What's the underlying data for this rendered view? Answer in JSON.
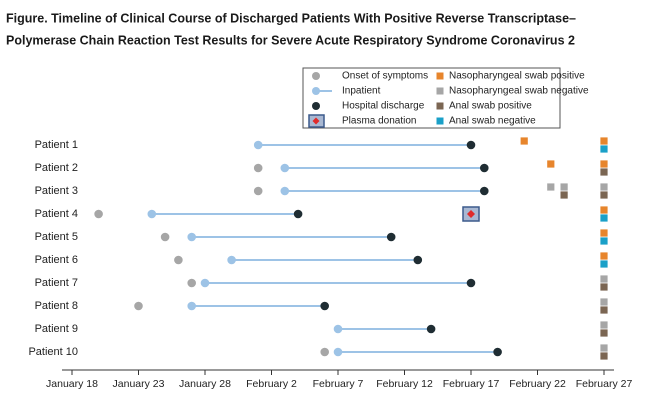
{
  "chart_data": {
    "type": "timeline",
    "title": [
      "Figure.  Timeline of Clinical Course of Discharged Patients With Positive Reverse Transcriptase–",
      "Polymerase Chain Reaction Test Results for Severe Acute Respiratory Syndrome Coronavirus 2"
    ],
    "categories": [
      "Patient 1",
      "Patient 2",
      "Patient 3",
      "Patient 4",
      "Patient 5",
      "Patient 6",
      "Patient 7",
      "Patient 8",
      "Patient 9",
      "Patient 10"
    ],
    "xlim": [
      18,
      58
    ],
    "xticks": [
      {
        "value": 18,
        "label": "January 18"
      },
      {
        "value": 23,
        "label": "January 23"
      },
      {
        "value": 28,
        "label": "January 28"
      },
      {
        "value": 33,
        "label": "February 2"
      },
      {
        "value": 38,
        "label": "February 7"
      },
      {
        "value": 43,
        "label": "February 12"
      },
      {
        "value": 48,
        "label": "February 17"
      },
      {
        "value": 53,
        "label": "February 22"
      },
      {
        "value": 58,
        "label": "February 27"
      }
    ],
    "series": [
      {
        "name": "Onset of symptoms",
        "color": "#a6a6a6",
        "values": [
          null,
          32,
          32,
          20,
          25,
          26,
          27,
          23,
          null,
          37
        ]
      },
      {
        "name": "Inpatient",
        "color": "#9dc3e6",
        "values": [
          32,
          34,
          34,
          24,
          27,
          30,
          28,
          27,
          38,
          38
        ]
      },
      {
        "name": "Hospital discharge",
        "color": "#1f2d33",
        "values": [
          48,
          49,
          49,
          35,
          42,
          44,
          48,
          37,
          45,
          50
        ]
      },
      {
        "name": "Plasma donation",
        "color": "#e02b2b",
        "values": [
          null,
          null,
          null,
          48,
          null,
          null,
          null,
          null,
          null,
          null
        ]
      },
      {
        "name": "Nasopharyngeal swab positive",
        "color": "#e7852c",
        "values": [
          [
            52,
            58
          ],
          [
            54,
            58
          ],
          [],
          [
            58
          ],
          [
            58
          ],
          [
            58
          ],
          [],
          [],
          [],
          []
        ]
      },
      {
        "name": "Nasopharyngeal swab negative",
        "color": "#a6a6a6",
        "values": [
          [],
          [],
          [
            54,
            55,
            58
          ],
          [],
          [],
          [],
          [
            58
          ],
          [
            58
          ],
          [
            58
          ],
          [
            58
          ]
        ]
      },
      {
        "name": "Anal swab positive",
        "color": "#7b6653",
        "values": [
          [],
          [
            58
          ],
          [
            55,
            58
          ],
          [],
          [],
          [],
          [
            58
          ],
          [
            58
          ],
          [
            58
          ],
          [
            58
          ]
        ]
      },
      {
        "name": "Anal swab negative",
        "color": "#1aa0c8",
        "values": [
          [
            58
          ],
          [],
          [],
          [
            58
          ],
          [
            58
          ],
          [
            58
          ],
          [],
          [],
          [],
          []
        ]
      }
    ]
  }
}
